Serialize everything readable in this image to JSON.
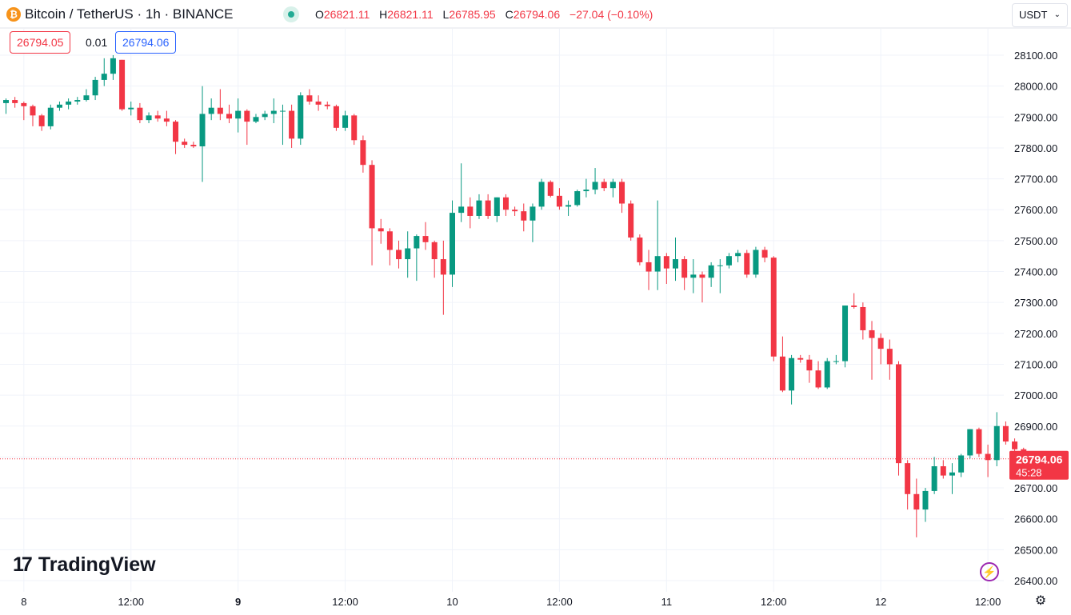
{
  "header": {
    "symbol_icon": "bitcoin-icon",
    "symbol_glyph": "₿",
    "title": "Bitcoin / TetherUS · 1h · BINANCE",
    "status_icon": "market-open-dot-icon",
    "ohlc": {
      "o_label": "O",
      "o_value": "26821.11",
      "h_label": "H",
      "h_value": "26821.11",
      "l_label": "L",
      "l_value": "26785.95",
      "c_label": "C",
      "c_value": "26794.06",
      "change": "−27.04 (−0.10%)"
    }
  },
  "quote": {
    "sell": "26794.05",
    "spread": "0.01",
    "buy": "26794.06"
  },
  "currency_selector": {
    "value": "USDT"
  },
  "branding": {
    "logo": "TradingView",
    "logo_mark": "17"
  },
  "colors": {
    "up": "#089981",
    "down": "#f23645",
    "grid": "#f0f3fa",
    "text": "#131722",
    "last_price": "#f23645"
  },
  "chart_data": {
    "type": "candlestick",
    "ylim": [
      26400,
      28150
    ],
    "y_ticks": [
      "28100.00",
      "28000.00",
      "27900.00",
      "27800.00",
      "27700.00",
      "27600.00",
      "27500.00",
      "27400.00",
      "27300.00",
      "27200.00",
      "27100.00",
      "27000.00",
      "26900.00",
      "26800.00",
      "26700.00",
      "26600.00",
      "26500.00",
      "26400.00"
    ],
    "x_ticks": [
      {
        "label": "8",
        "bold": false,
        "index": 2
      },
      {
        "label": "12:00",
        "bold": false,
        "index": 14
      },
      {
        "label": "9",
        "bold": true,
        "index": 26
      },
      {
        "label": "12:00",
        "bold": false,
        "index": 38
      },
      {
        "label": "10",
        "bold": false,
        "index": 50
      },
      {
        "label": "12:00",
        "bold": false,
        "index": 62
      },
      {
        "label": "11",
        "bold": false,
        "index": 74
      },
      {
        "label": "12:00",
        "bold": false,
        "index": 86
      },
      {
        "label": "12",
        "bold": false,
        "index": 98
      },
      {
        "label": "12:00",
        "bold": false,
        "index": 110
      }
    ],
    "last_price": {
      "value": 26794.06,
      "label": "26794.06",
      "countdown": "45:28"
    },
    "candles": [
      [
        27945,
        27960,
        27910,
        27955
      ],
      [
        27955,
        27965,
        27930,
        27945
      ],
      [
        27945,
        27950,
        27890,
        27935
      ],
      [
        27935,
        27940,
        27870,
        27905
      ],
      [
        27905,
        27910,
        27855,
        27870
      ],
      [
        27870,
        27940,
        27860,
        27930
      ],
      [
        27930,
        27950,
        27920,
        27940
      ],
      [
        27940,
        27960,
        27925,
        27950
      ],
      [
        27950,
        27965,
        27940,
        27955
      ],
      [
        27955,
        27990,
        27950,
        27970
      ],
      [
        27970,
        28030,
        27955,
        28020
      ],
      [
        28020,
        28090,
        28000,
        28040
      ],
      [
        28040,
        28100,
        28020,
        28090
      ],
      [
        28085,
        28085,
        27920,
        27925
      ],
      [
        27925,
        27950,
        27905,
        27930
      ],
      [
        27930,
        27945,
        27880,
        27890
      ],
      [
        27890,
        27915,
        27880,
        27905
      ],
      [
        27905,
        27920,
        27885,
        27895
      ],
      [
        27895,
        27920,
        27870,
        27885
      ],
      [
        27885,
        27890,
        27780,
        27820
      ],
      [
        27820,
        27830,
        27800,
        27810
      ],
      [
        27810,
        27820,
        27800,
        27805
      ],
      [
        27805,
        28000,
        27690,
        27910
      ],
      [
        27910,
        27960,
        27890,
        27930
      ],
      [
        27930,
        27990,
        27890,
        27910
      ],
      [
        27910,
        27940,
        27880,
        27895
      ],
      [
        27895,
        27960,
        27850,
        27920
      ],
      [
        27920,
        27925,
        27810,
        27885
      ],
      [
        27885,
        27910,
        27880,
        27900
      ],
      [
        27900,
        27920,
        27890,
        27910
      ],
      [
        27910,
        27960,
        27880,
        27920
      ],
      [
        27920,
        27940,
        27810,
        27920
      ],
      [
        27920,
        27940,
        27800,
        27830
      ],
      [
        27830,
        27980,
        27810,
        27970
      ],
      [
        27970,
        27990,
        27940,
        27950
      ],
      [
        27950,
        27970,
        27920,
        27940
      ],
      [
        27940,
        27950,
        27925,
        27935
      ],
      [
        27935,
        27940,
        27855,
        27865
      ],
      [
        27865,
        27920,
        27855,
        27905
      ],
      [
        27905,
        27910,
        27810,
        27825
      ],
      [
        27825,
        27840,
        27720,
        27745
      ],
      [
        27745,
        27760,
        27420,
        27540
      ],
      [
        27540,
        27570,
        27490,
        27530
      ],
      [
        27530,
        27540,
        27420,
        27470
      ],
      [
        27470,
        27500,
        27410,
        27440
      ],
      [
        27440,
        27530,
        27380,
        27475
      ],
      [
        27475,
        27520,
        27370,
        27515
      ],
      [
        27515,
        27560,
        27470,
        27495
      ],
      [
        27495,
        27500,
        27380,
        27440
      ],
      [
        27440,
        27500,
        27260,
        27390
      ],
      [
        27390,
        27630,
        27350,
        27590
      ],
      [
        27590,
        27750,
        27560,
        27610
      ],
      [
        27610,
        27640,
        27540,
        27580
      ],
      [
        27580,
        27650,
        27570,
        27630
      ],
      [
        27630,
        27650,
        27570,
        27580
      ],
      [
        27580,
        27640,
        27560,
        27640
      ],
      [
        27640,
        27650,
        27580,
        27600
      ],
      [
        27600,
        27610,
        27580,
        27595
      ],
      [
        27595,
        27620,
        27530,
        27565
      ],
      [
        27565,
        27620,
        27495,
        27610
      ],
      [
        27610,
        27700,
        27600,
        27690
      ],
      [
        27690,
        27695,
        27640,
        27645
      ],
      [
        27645,
        27670,
        27600,
        27610
      ],
      [
        27610,
        27630,
        27580,
        27615
      ],
      [
        27615,
        27665,
        27610,
        27660
      ],
      [
        27660,
        27700,
        27640,
        27665
      ],
      [
        27665,
        27735,
        27650,
        27690
      ],
      [
        27690,
        27700,
        27660,
        27670
      ],
      [
        27670,
        27700,
        27640,
        27690
      ],
      [
        27690,
        27700,
        27590,
        27620
      ],
      [
        27620,
        27630,
        27500,
        27510
      ],
      [
        27510,
        27520,
        27420,
        27430
      ],
      [
        27430,
        27470,
        27340,
        27400
      ],
      [
        27400,
        27630,
        27340,
        27450
      ],
      [
        27450,
        27460,
        27360,
        27410
      ],
      [
        27410,
        27510,
        27370,
        27440
      ],
      [
        27440,
        27450,
        27340,
        27380
      ],
      [
        27380,
        27440,
        27330,
        27390
      ],
      [
        27390,
        27400,
        27300,
        27380
      ],
      [
        27380,
        27430,
        27350,
        27420
      ],
      [
        27420,
        27440,
        27330,
        27420
      ],
      [
        27420,
        27460,
        27410,
        27450
      ],
      [
        27450,
        27470,
        27430,
        27460
      ],
      [
        27460,
        27470,
        27380,
        27390
      ],
      [
        27390,
        27480,
        27380,
        27470
      ],
      [
        27470,
        27480,
        27430,
        27445
      ],
      [
        27445,
        27450,
        27110,
        27125
      ],
      [
        27125,
        27190,
        27010,
        27015
      ],
      [
        27015,
        27130,
        26970,
        27120
      ],
      [
        27120,
        27130,
        27105,
        27115
      ],
      [
        27115,
        27130,
        27040,
        27080
      ],
      [
        27080,
        27110,
        27020,
        27025
      ],
      [
        27025,
        27120,
        27020,
        27110
      ],
      [
        27110,
        27130,
        27100,
        27110
      ],
      [
        27110,
        27290,
        27090,
        27290
      ],
      [
        27290,
        27330,
        27280,
        27285
      ],
      [
        27285,
        27300,
        27180,
        27210
      ],
      [
        27210,
        27240,
        27050,
        27185
      ],
      [
        27185,
        27200,
        27100,
        27150
      ],
      [
        27150,
        27180,
        27050,
        27100
      ],
      [
        27100,
        27110,
        26740,
        26780
      ],
      [
        26780,
        26790,
        26630,
        26680
      ],
      [
        26680,
        26730,
        26540,
        26630
      ],
      [
        26630,
        26700,
        26590,
        26690
      ],
      [
        26690,
        26800,
        26680,
        26770
      ],
      [
        26770,
        26790,
        26730,
        26740
      ],
      [
        26740,
        26780,
        26680,
        26750
      ],
      [
        26750,
        26810,
        26735,
        26805
      ],
      [
        26805,
        26890,
        26795,
        26890
      ],
      [
        26890,
        26895,
        26800,
        26810
      ],
      [
        26810,
        26840,
        26735,
        26790
      ],
      [
        26790,
        26945,
        26770,
        26900
      ],
      [
        26900,
        26915,
        26840,
        26850
      ],
      [
        26850,
        26860,
        26800,
        26825
      ],
      [
        26825,
        26830,
        26785,
        26795
      ]
    ]
  }
}
